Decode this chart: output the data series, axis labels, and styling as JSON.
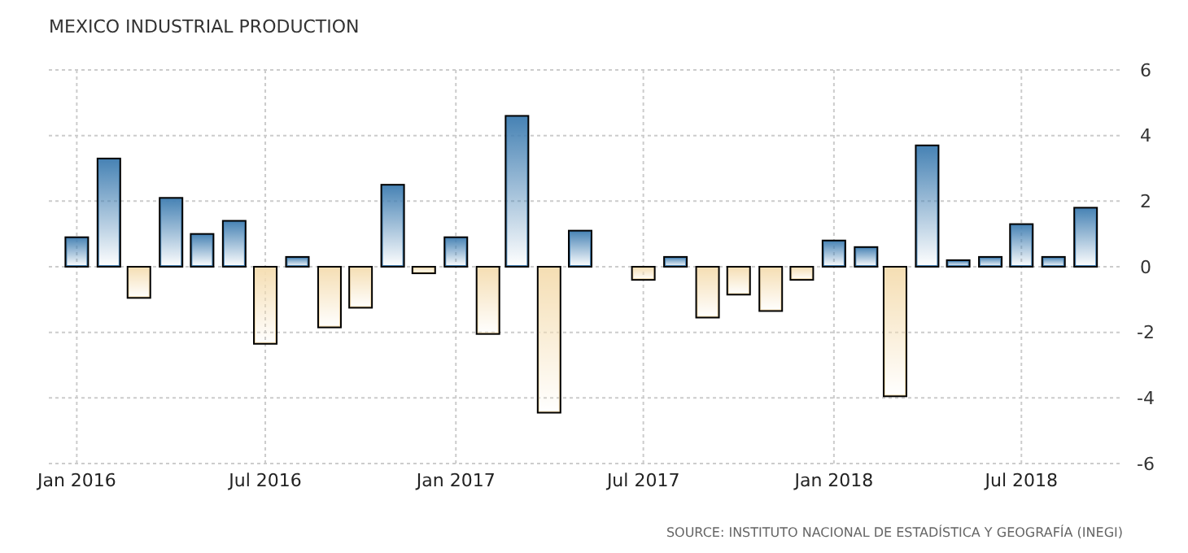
{
  "chart_data": {
    "type": "bar",
    "title": "MEXICO INDUSTRIAL PRODUCTION",
    "x": [
      "2016-01",
      "2016-02",
      "2016-03",
      "2016-04",
      "2016-05",
      "2016-06",
      "2016-07",
      "2016-08",
      "2016-09",
      "2016-10",
      "2016-11",
      "2016-12",
      "2017-01",
      "2017-02",
      "2017-03",
      "2017-04",
      "2017-05",
      "2017-06",
      "2017-07",
      "2017-08",
      "2017-09",
      "2017-10",
      "2017-11",
      "2017-12",
      "2018-01",
      "2018-02",
      "2018-03",
      "2018-04",
      "2018-05",
      "2018-06",
      "2018-07",
      "2018-08",
      "2018-09"
    ],
    "values": [
      0.9,
      3.3,
      -0.95,
      2.1,
      1.0,
      1.4,
      -2.35,
      0.3,
      -1.85,
      -1.25,
      2.5,
      -0.2,
      0.9,
      -2.05,
      4.6,
      -4.45,
      1.1,
      null,
      -0.4,
      0.3,
      -1.55,
      -0.85,
      -1.35,
      -0.4,
      0.8,
      0.6,
      -3.95,
      3.7,
      0.2,
      0.3,
      1.3,
      0.3,
      1.8
    ],
    "colors": [
      "#4682b4",
      "#4682b4",
      "#f5deb3",
      "#4682b4",
      "#4682b4",
      "#4682b4",
      "#f5deb3",
      "#4682b4",
      "#f5deb3",
      "#f5deb3",
      "#4682b4",
      "#f5deb3",
      "#4682b4",
      "#f5deb3",
      "#4682b4",
      "#f5deb3",
      "#4682b4",
      null,
      "#f5deb3",
      "#4682b4",
      "#f5deb3",
      "#f5deb3",
      "#f5deb3",
      "#f5deb3",
      "#4682b4",
      "#4682b4",
      "#f5deb3",
      "#4682b4",
      "#4682b4",
      "#4682b4",
      "#4682b4",
      "#4682b4",
      "#4682b4"
    ],
    "xlim": [
      "2015-12-05",
      "2018-10-07"
    ],
    "xticks": [
      {
        "value": "2016-01",
        "label": "Jan 2016"
      },
      {
        "value": "2016-07",
        "label": "Jul 2016"
      },
      {
        "value": "2017-01",
        "label": "Jan 2017"
      },
      {
        "value": "2017-07",
        "label": "Jul 2017"
      },
      {
        "value": "2018-01",
        "label": "Jan 2018"
      },
      {
        "value": "2018-07",
        "label": "Jul 2018"
      }
    ],
    "ylim": [
      -6,
      6
    ],
    "yticks": [
      -6,
      -4,
      -2,
      0,
      2,
      4,
      6
    ],
    "grid": true,
    "annotations": [
      "SOURCE: INSTITUTO NACIONAL DE ESTADÍSTICA Y GEOGRAFÍA (INEGI)"
    ]
  }
}
